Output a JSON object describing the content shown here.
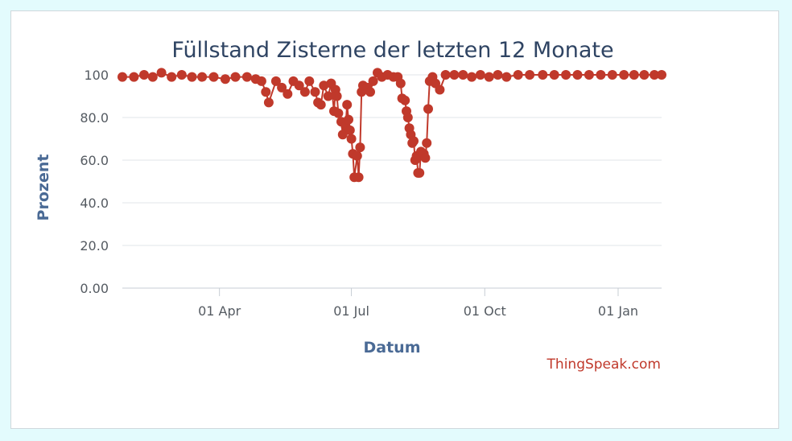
{
  "chart_data": {
    "type": "line",
    "title": "Füllstand Zisterne der letzten 12 Monate",
    "xlabel": "Datum",
    "ylabel": "Prozent",
    "y_ticks": [
      "0.00",
      "20.0",
      "40.0",
      "60.0",
      "80.0",
      "100"
    ],
    "ylim": [
      0,
      100
    ],
    "x_ticks": [
      "01 Apr",
      "01 Jul",
      "01 Oct",
      "01 Jan"
    ],
    "xlim": [
      "2023-01-24",
      "2024-01-31"
    ],
    "x_tick_dates": [
      "2023-04-01",
      "2023-07-01",
      "2023-10-01",
      "2024-01-01"
    ],
    "grid": true,
    "series": [
      {
        "color": "#c0392b",
        "marker": "circle",
        "points": [
          [
            "2023-01-24",
            99
          ],
          [
            "2023-02-01",
            99
          ],
          [
            "2023-02-08",
            100
          ],
          [
            "2023-02-14",
            99
          ],
          [
            "2023-02-20",
            101
          ],
          [
            "2023-02-27",
            99
          ],
          [
            "2023-03-06",
            100
          ],
          [
            "2023-03-13",
            99
          ],
          [
            "2023-03-20",
            99
          ],
          [
            "2023-03-28",
            99
          ],
          [
            "2023-04-05",
            98
          ],
          [
            "2023-04-12",
            99
          ],
          [
            "2023-04-20",
            99
          ],
          [
            "2023-04-26",
            98
          ],
          [
            "2023-04-30",
            97
          ],
          [
            "2023-05-03",
            92
          ],
          [
            "2023-05-05",
            87
          ],
          [
            "2023-05-10",
            97
          ],
          [
            "2023-05-14",
            94
          ],
          [
            "2023-05-18",
            91
          ],
          [
            "2023-05-22",
            97
          ],
          [
            "2023-05-26",
            95
          ],
          [
            "2023-05-30",
            92
          ],
          [
            "2023-06-02",
            97
          ],
          [
            "2023-06-06",
            92
          ],
          [
            "2023-06-08",
            87
          ],
          [
            "2023-06-10",
            86
          ],
          [
            "2023-06-12",
            95
          ],
          [
            "2023-06-15",
            90
          ],
          [
            "2023-06-17",
            96
          ],
          [
            "2023-06-19",
            83
          ],
          [
            "2023-06-20",
            93
          ],
          [
            "2023-06-21",
            90
          ],
          [
            "2023-06-22",
            82
          ],
          [
            "2023-06-24",
            78
          ],
          [
            "2023-06-25",
            72
          ],
          [
            "2023-06-27",
            76
          ],
          [
            "2023-06-28",
            86
          ],
          [
            "2023-06-29",
            79
          ],
          [
            "2023-06-30",
            74
          ],
          [
            "2023-07-01",
            70
          ],
          [
            "2023-07-02",
            63
          ],
          [
            "2023-07-03",
            52
          ],
          [
            "2023-07-05",
            62
          ],
          [
            "2023-07-06",
            52
          ],
          [
            "2023-07-07",
            66
          ],
          [
            "2023-07-08",
            92
          ],
          [
            "2023-07-09",
            95
          ],
          [
            "2023-07-12",
            94
          ],
          [
            "2023-07-14",
            92
          ],
          [
            "2023-07-16",
            97
          ],
          [
            "2023-07-19",
            101
          ],
          [
            "2023-07-22",
            99
          ],
          [
            "2023-07-26",
            100
          ],
          [
            "2023-07-30",
            99
          ],
          [
            "2023-08-02",
            99
          ],
          [
            "2023-08-04",
            96
          ],
          [
            "2023-08-05",
            89
          ],
          [
            "2023-08-07",
            88
          ],
          [
            "2023-08-08",
            83
          ],
          [
            "2023-08-09",
            80
          ],
          [
            "2023-08-10",
            75
          ],
          [
            "2023-08-11",
            72
          ],
          [
            "2023-08-12",
            68
          ],
          [
            "2023-08-13",
            69
          ],
          [
            "2023-08-14",
            60
          ],
          [
            "2023-08-15",
            62
          ],
          [
            "2023-08-16",
            54
          ],
          [
            "2023-08-17",
            54
          ],
          [
            "2023-08-18",
            64
          ],
          [
            "2023-08-20",
            63
          ],
          [
            "2023-08-21",
            61
          ],
          [
            "2023-08-22",
            68
          ],
          [
            "2023-08-23",
            84
          ],
          [
            "2023-08-24",
            97
          ],
          [
            "2023-08-26",
            99
          ],
          [
            "2023-08-28",
            96
          ],
          [
            "2023-08-31",
            93
          ],
          [
            "2023-09-04",
            100
          ],
          [
            "2023-09-10",
            100
          ],
          [
            "2023-09-16",
            100
          ],
          [
            "2023-09-22",
            99
          ],
          [
            "2023-09-28",
            100
          ],
          [
            "2023-10-04",
            99
          ],
          [
            "2023-10-10",
            100
          ],
          [
            "2023-10-16",
            99
          ],
          [
            "2023-10-24",
            100
          ],
          [
            "2023-11-01",
            100
          ],
          [
            "2023-11-10",
            100
          ],
          [
            "2023-11-18",
            100
          ],
          [
            "2023-11-26",
            100
          ],
          [
            "2023-12-04",
            100
          ],
          [
            "2023-12-12",
            100
          ],
          [
            "2023-12-20",
            100
          ],
          [
            "2023-12-28",
            100
          ],
          [
            "2024-01-05",
            100
          ],
          [
            "2024-01-12",
            100
          ],
          [
            "2024-01-19",
            100
          ],
          [
            "2024-01-26",
            100
          ],
          [
            "2024-01-31",
            100
          ]
        ]
      }
    ]
  },
  "credit": "ThingSpeak.com"
}
